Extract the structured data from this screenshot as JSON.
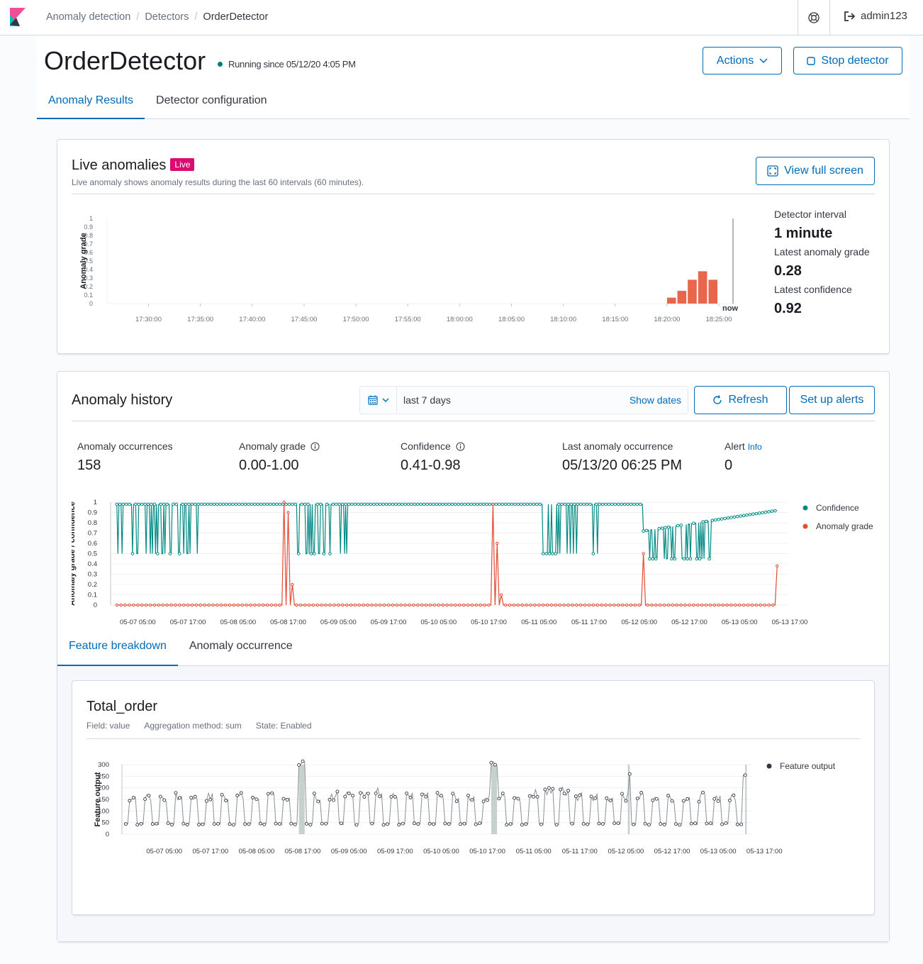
{
  "breadcrumbs": [
    "Anomaly detection",
    "Detectors",
    "OrderDetector"
  ],
  "user": "admin123",
  "detector": {
    "name": "OrderDetector",
    "status": "Running since 05/12/20 4:05 PM",
    "actions_label": "Actions",
    "stop_label": "Stop detector"
  },
  "tabs": [
    "Anomaly Results",
    "Detector configuration"
  ],
  "live": {
    "title": "Live anomalies",
    "badge": "Live",
    "subtitle": "Live anomaly shows anomaly results during the last 60 intervals (60 minutes).",
    "fullscreen_label": "View full screen",
    "detector_interval_label": "Detector interval",
    "detector_interval": "1 minute",
    "latest_grade_label": "Latest anomaly grade",
    "latest_grade": "0.28",
    "latest_confidence_label": "Latest confidence",
    "latest_confidence": "0.92"
  },
  "history": {
    "title": "Anomaly history",
    "date_range": "last 7 days",
    "show_dates": "Show dates",
    "refresh_label": "Refresh",
    "alerts_label": "Set up alerts",
    "stats": [
      {
        "label": "Anomaly occurrences",
        "value": "158"
      },
      {
        "label": "Anomaly grade",
        "value": "0.00-1.00"
      },
      {
        "label": "Confidence",
        "value": "0.41-0.98"
      },
      {
        "label": "Last anomaly occurrence",
        "value": "05/13/20 06:25 PM"
      },
      {
        "label": "Alert",
        "value": "0"
      }
    ],
    "alert_info": "Info"
  },
  "sub_tabs": [
    "Feature breakdown",
    "Anomaly occurrence"
  ],
  "feature": {
    "title": "Total_order",
    "field": "Field: value",
    "aggregation": "Aggregation method: sum",
    "state": "State: Enabled"
  },
  "chart_data": [
    {
      "type": "bar",
      "ylabel": "Anomaly grade",
      "ylim": [
        0,
        1
      ],
      "yticks": [
        "0",
        "0.1",
        "0.2",
        "0.3",
        "0.4",
        "0.5",
        "0.6",
        "0.7",
        "0.8",
        "0.9",
        "1"
      ],
      "xticks": [
        "17:30:00",
        "17:35:00",
        "17:40:00",
        "17:45:00",
        "17:50:00",
        "17:55:00",
        "18:00:00",
        "18:05:00",
        "18:10:00",
        "18:15:00",
        "18:20:00",
        "18:25:00"
      ],
      "now_label": "now",
      "bar_color": "#e7664c",
      "bars": [
        {
          "x": "18:20:00",
          "value": 0.07
        },
        {
          "x": "18:21:00",
          "value": 0.15
        },
        {
          "x": "18:22:00",
          "value": 0.28
        },
        {
          "x": "18:23:00",
          "value": 0.38
        },
        {
          "x": "18:24:00",
          "value": 0.28
        }
      ]
    },
    {
      "type": "line",
      "ylabel": "Anomaly grade / confidence",
      "ylim": [
        0,
        1
      ],
      "yticks": [
        "0",
        "0.1",
        "0.2",
        "0.3",
        "0.4",
        "0.5",
        "0.6",
        "0.7",
        "0.8",
        "0.9",
        "1"
      ],
      "xticks": [
        "05-07 05:00",
        "05-07 17:00",
        "05-08 05:00",
        "05-08 17:00",
        "05-09 05:00",
        "05-09 17:00",
        "05-10 05:00",
        "05-10 17:00",
        "05-11 05:00",
        "05-11 17:00",
        "05-12 05:00",
        "05-12 17:00",
        "05-13 05:00",
        "05-13 17:00"
      ],
      "legend_position": "right",
      "series": [
        {
          "name": "Confidence",
          "color": "#018a84"
        },
        {
          "name": "Anomaly grade",
          "color": "#e34b33"
        }
      ]
    },
    {
      "type": "line",
      "ylabel": "Feature output",
      "ylim": [
        0,
        300
      ],
      "yticks": [
        "0",
        "50",
        "100",
        "150",
        "200",
        "250",
        "300"
      ],
      "xticks": [
        "05-07 05:00",
        "05-07 17:00",
        "05-08 05:00",
        "05-08 17:00",
        "05-09 05:00",
        "05-09 17:00",
        "05-10 05:00",
        "05-10 17:00",
        "05-11 05:00",
        "05-11 17:00",
        "05-12 05:00",
        "05-12 17:00",
        "05-13 05:00",
        "05-13 17:00"
      ],
      "legend_position": "right",
      "series": [
        {
          "name": "Feature output",
          "color": "#343741"
        }
      ]
    }
  ]
}
